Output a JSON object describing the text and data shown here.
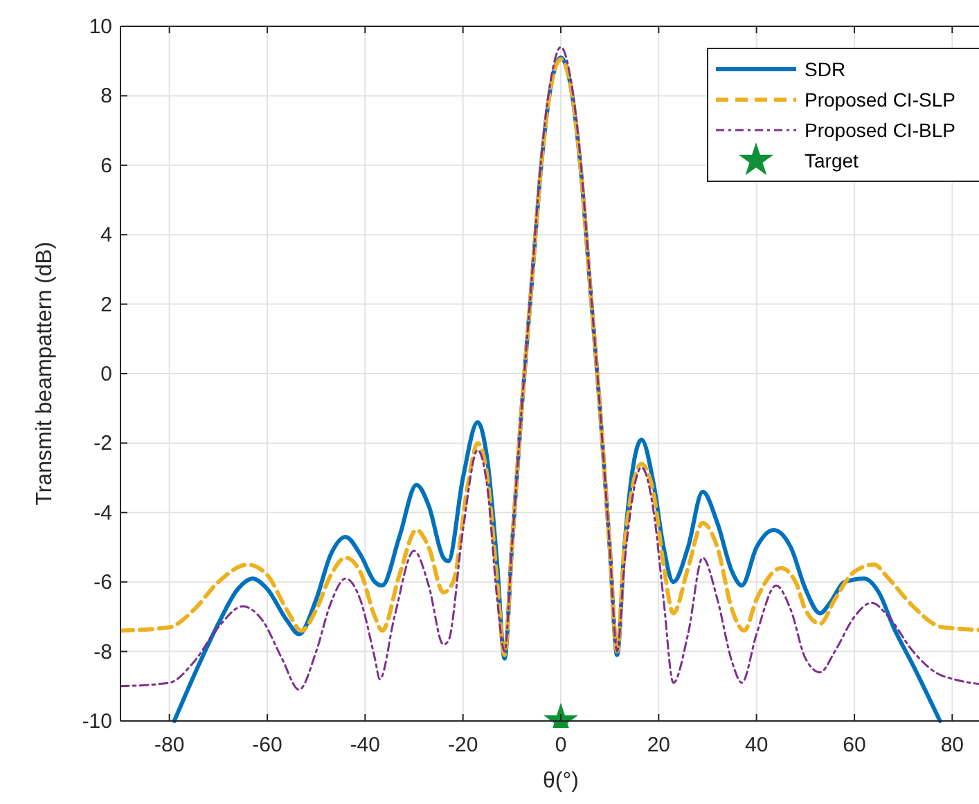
{
  "chart_data": {
    "type": "line",
    "xlabel": "θ(°)",
    "ylabel": "Transmit beampattern (dB)",
    "xlim": [
      -90,
      90
    ],
    "ylim": [
      -10,
      10
    ],
    "xticks": [
      -80,
      -60,
      -40,
      -20,
      0,
      20,
      40,
      60,
      80
    ],
    "yticks": [
      -10,
      -8,
      -6,
      -4,
      -2,
      0,
      2,
      4,
      6,
      8,
      10
    ],
    "grid": true,
    "legend": "top right",
    "series": [
      {
        "name": "SDR",
        "color": "#0072bd",
        "line_style": "solid",
        "marker": "none",
        "x": [
          -79,
          -75,
          -70,
          -66,
          -63,
          -60,
          -56,
          -53.5,
          -50,
          -47,
          -44,
          -41,
          -38,
          -36.5,
          -33,
          -29.5,
          -27,
          -24,
          -23,
          -20,
          -17,
          -15,
          -13,
          -11.5,
          -10,
          -8,
          -6,
          -4,
          -2,
          0,
          2,
          4,
          6,
          8,
          10,
          11.5,
          13,
          16.5,
          19,
          21,
          23,
          26,
          29,
          32,
          35,
          37,
          40,
          43.5,
          47,
          50,
          53,
          55,
          58,
          62,
          65,
          68,
          72,
          77.5
        ],
        "values": [
          -10,
          -8.7,
          -7.2,
          -6.2,
          -5.9,
          -6.2,
          -7.1,
          -7.5,
          -6.5,
          -5.2,
          -4.7,
          -5.2,
          -6.0,
          -6.1,
          -4.7,
          -3.2,
          -3.8,
          -5.3,
          -5.4,
          -3.0,
          -1.4,
          -2.5,
          -5.5,
          -8.2,
          -5,
          -1,
          2.5,
          6,
          8.3,
          9.1,
          8.3,
          6,
          2.5,
          -1,
          -5,
          -8.1,
          -5,
          -1.9,
          -3.2,
          -5,
          -6.0,
          -5,
          -3.4,
          -4.3,
          -5.7,
          -6.1,
          -5.0,
          -4.5,
          -5.0,
          -6.2,
          -6.9,
          -6.6,
          -6.0,
          -5.9,
          -6.3,
          -7.3,
          -8.4,
          -10
        ]
      },
      {
        "name": "Proposed CI-SLP",
        "color": "#edb120",
        "line_style": "dashed",
        "marker": "none",
        "x": [
          -90,
          -80,
          -75,
          -70,
          -64,
          -60,
          -56,
          -53,
          -50,
          -47,
          -44,
          -41,
          -38,
          -36.5,
          -33,
          -29.5,
          -27,
          -24,
          -22,
          -19,
          -17,
          -15,
          -13,
          -11.5,
          -10,
          -8,
          -6,
          -4,
          -2,
          0,
          2,
          4,
          6,
          8,
          10,
          11.5,
          13,
          16.5,
          19,
          21,
          23,
          26,
          29,
          32,
          35,
          37.5,
          40,
          45,
          48,
          50,
          53,
          56,
          60,
          64,
          67,
          72,
          78,
          90
        ],
        "values": [
          -7.4,
          -7.3,
          -6.8,
          -6.0,
          -5.5,
          -5.8,
          -6.8,
          -7.4,
          -6.8,
          -5.8,
          -5.3,
          -5.7,
          -7.0,
          -7.4,
          -5.8,
          -4.5,
          -5.0,
          -6.3,
          -6.0,
          -3.2,
          -2.0,
          -3.0,
          -6.0,
          -8.1,
          -5,
          -1,
          2.5,
          6,
          8.3,
          9.05,
          8.3,
          6,
          2.5,
          -1,
          -5,
          -8.0,
          -5,
          -2.6,
          -3.5,
          -5.5,
          -6.9,
          -5.6,
          -4.3,
          -5.0,
          -6.8,
          -7.4,
          -6.5,
          -5.6,
          -6.0,
          -6.8,
          -7.2,
          -6.5,
          -5.7,
          -5.5,
          -5.9,
          -6.7,
          -7.3,
          -7.4
        ]
      },
      {
        "name": "Proposed CI-BLP",
        "color": "#7e2f8e",
        "line_style": "dashed",
        "marker": "none",
        "x": [
          -90,
          -80,
          -75,
          -70,
          -65,
          -61,
          -57,
          -53.5,
          -50,
          -47,
          -44,
          -41,
          -38,
          -37,
          -34,
          -30,
          -27,
          -24,
          -23,
          -20,
          -17,
          -15,
          -13,
          -11.5,
          -10,
          -8,
          -6,
          -4,
          -2,
          0,
          2,
          4,
          6,
          8,
          10,
          11.5,
          13,
          16.5,
          19,
          21,
          23,
          26,
          29,
          32,
          35,
          37,
          40,
          44,
          47,
          50,
          53,
          56,
          60,
          63.5,
          67,
          72,
          78,
          90
        ],
        "values": [
          -9.0,
          -8.9,
          -8.3,
          -7.3,
          -6.7,
          -7.1,
          -8.2,
          -9.1,
          -8.0,
          -6.6,
          -5.9,
          -6.5,
          -8.2,
          -8.8,
          -7.0,
          -5.1,
          -6.1,
          -7.8,
          -7.7,
          -4.5,
          -2.2,
          -3.3,
          -6.5,
          -8.0,
          -5,
          -1,
          2.6,
          6.2,
          8.5,
          9.4,
          8.5,
          6.2,
          2.6,
          -1,
          -5,
          -8.0,
          -5.5,
          -2.7,
          -4.0,
          -6.5,
          -8.9,
          -7.5,
          -5.3,
          -6.5,
          -8.3,
          -8.9,
          -7.5,
          -6.1,
          -6.8,
          -8.2,
          -8.6,
          -8.0,
          -7.0,
          -6.6,
          -7.0,
          -8.0,
          -8.7,
          -9.0
        ]
      },
      {
        "name": "Target",
        "type": "scatter",
        "color": "#0f9138",
        "marker": "star",
        "x": [
          0
        ],
        "values": [
          -10
        ]
      }
    ]
  }
}
